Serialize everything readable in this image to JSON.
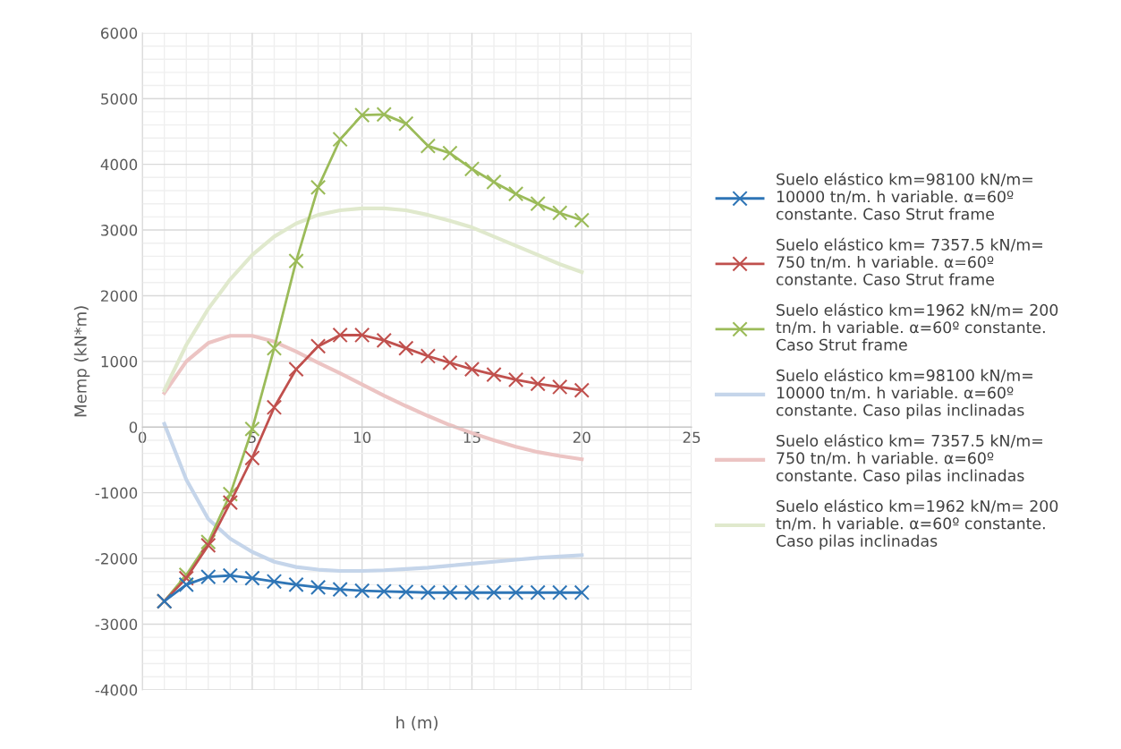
{
  "chart_data": {
    "type": "line",
    "xlabel": "h (m)",
    "ylabel": "Memp (kN*m)",
    "x": [
      1,
      2,
      3,
      4,
      5,
      6,
      7,
      8,
      9,
      10,
      11,
      12,
      13,
      14,
      15,
      16,
      17,
      18,
      19,
      20
    ],
    "xlim": [
      0,
      25
    ],
    "xticks": [
      0,
      5,
      10,
      15,
      20,
      25
    ],
    "ylim": [
      -4000,
      6000
    ],
    "yticks": [
      -4000,
      -3000,
      -2000,
      -1000,
      0,
      1000,
      2000,
      3000,
      4000,
      5000,
      6000
    ],
    "grid": true,
    "legend": "right",
    "series": [
      {
        "name": "Suelo elástico km=98100 kN/m= 10000 tn/m. h variable. α=60º constante. Caso Strut frame",
        "color": "#2e75b6",
        "marker": "cross",
        "values": [
          -2650,
          -2400,
          -2280,
          -2260,
          -2300,
          -2350,
          -2400,
          -2440,
          -2470,
          -2490,
          -2500,
          -2510,
          -2520,
          -2520,
          -2520,
          -2520,
          -2520,
          -2520,
          -2520,
          -2520
        ]
      },
      {
        "name": "Suelo elástico km= 7357.5 kN/m= 750 tn/m. h variable. α=60º constante. Caso Strut frame",
        "color": "#c0504d",
        "marker": "cross",
        "values": [
          -2650,
          -2300,
          -1800,
          -1150,
          -470,
          300,
          880,
          1230,
          1400,
          1400,
          1320,
          1200,
          1080,
          980,
          880,
          800,
          720,
          660,
          610,
          560
        ]
      },
      {
        "name": "Suelo elástico km=1962 kN/m= 200 tn/m. h variable. α=60º constante. Caso Strut frame",
        "color": "#9bbb59",
        "marker": "cross",
        "values": [
          -2650,
          -2250,
          -1750,
          -1020,
          -30,
          1200,
          2530,
          3650,
          4380,
          4750,
          4760,
          4620,
          4280,
          4170,
          3930,
          3730,
          3550,
          3400,
          3260,
          3150
        ]
      },
      {
        "name": "Suelo elástico km=98100 kN/m= 10000 tn/m. h variable. α=60º constante. Caso pilas inclinadas",
        "color": "#c5d5ea",
        "marker": "none",
        "values": [
          50,
          -800,
          -1400,
          -1700,
          -1900,
          -2050,
          -2130,
          -2170,
          -2190,
          -2190,
          -2180,
          -2160,
          -2140,
          -2110,
          -2080,
          -2050,
          -2020,
          -1990,
          -1970,
          -1950
        ]
      },
      {
        "name": "Suelo elástico km= 7357.5 kN/m= 750 tn/m. h variable. α=60º constante. Caso pilas inclinadas",
        "color": "#ecc4c3",
        "marker": "none",
        "values": [
          520,
          1000,
          1280,
          1390,
          1390,
          1300,
          1150,
          980,
          820,
          650,
          480,
          320,
          170,
          30,
          -90,
          -200,
          -300,
          -380,
          -440,
          -490
        ]
      },
      {
        "name": "Suelo elástico km=1962 kN/m= 200 tn/m. h variable. α=60º constante. Caso pilas inclinadas",
        "color": "#e0e9cd",
        "marker": "none",
        "values": [
          560,
          1250,
          1800,
          2250,
          2620,
          2900,
          3100,
          3230,
          3300,
          3330,
          3330,
          3300,
          3230,
          3140,
          3040,
          2900,
          2760,
          2620,
          2480,
          2360
        ]
      }
    ]
  }
}
